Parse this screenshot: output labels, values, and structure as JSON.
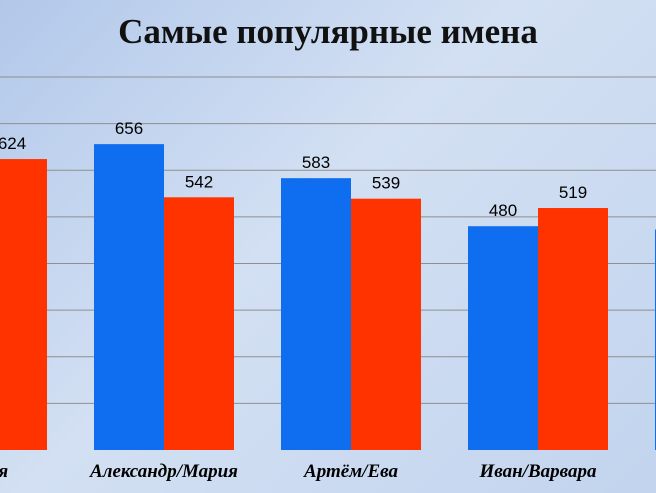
{
  "chart_data": {
    "type": "bar",
    "title": "Самые популярные имена",
    "categories": [
      "…офия",
      "Александр/Мария",
      "Артём/Ева",
      "Иван/Варвара",
      ""
    ],
    "series": [
      {
        "values": [
          null,
          656,
          583,
          480,
          473
        ]
      },
      {
        "values": [
          624,
          542,
          539,
          519,
          null
        ]
      }
    ],
    "data_labels": [
      [
        null,
        "656",
        "583",
        "480",
        null
      ],
      [
        "624",
        "542",
        "539",
        "519",
        null
      ]
    ],
    "ylim": [
      0,
      800
    ],
    "grid": true,
    "legend": "none",
    "colors": {
      "series_1": "#0f6ef0",
      "series_2": "#ff3300",
      "grid": "#8f8f8f"
    }
  }
}
